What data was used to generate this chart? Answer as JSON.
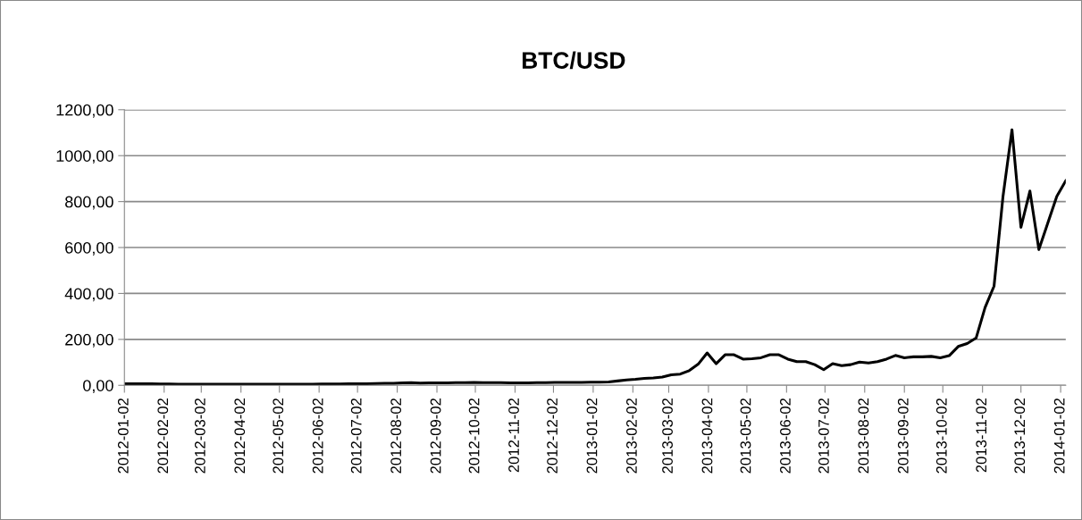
{
  "chart_data": {
    "type": "line",
    "title": "BTC/USD",
    "x": [
      "2012-01-02",
      "2012-01-09",
      "2012-01-16",
      "2012-01-23",
      "2012-01-30",
      "2012-02-06",
      "2012-02-13",
      "2012-02-20",
      "2012-02-27",
      "2012-03-05",
      "2012-03-12",
      "2012-03-19",
      "2012-03-26",
      "2012-04-02",
      "2012-04-09",
      "2012-04-16",
      "2012-04-23",
      "2012-04-30",
      "2012-05-07",
      "2012-05-14",
      "2012-05-21",
      "2012-05-28",
      "2012-06-04",
      "2012-06-11",
      "2012-06-18",
      "2012-06-25",
      "2012-07-02",
      "2012-07-09",
      "2012-07-16",
      "2012-07-23",
      "2012-07-30",
      "2012-08-06",
      "2012-08-13",
      "2012-08-20",
      "2012-08-27",
      "2012-09-03",
      "2012-09-10",
      "2012-09-17",
      "2012-09-24",
      "2012-10-01",
      "2012-10-08",
      "2012-10-15",
      "2012-10-22",
      "2012-10-29",
      "2012-11-05",
      "2012-11-12",
      "2012-11-19",
      "2012-11-26",
      "2012-12-03",
      "2012-12-10",
      "2012-12-17",
      "2012-12-24",
      "2012-12-31",
      "2013-01-07",
      "2013-01-14",
      "2013-01-21",
      "2013-01-28",
      "2013-02-04",
      "2013-02-11",
      "2013-02-18",
      "2013-02-25",
      "2013-03-04",
      "2013-03-11",
      "2013-03-18",
      "2013-03-25",
      "2013-04-01",
      "2013-04-08",
      "2013-04-15",
      "2013-04-22",
      "2013-04-29",
      "2013-05-06",
      "2013-05-13",
      "2013-05-20",
      "2013-05-27",
      "2013-06-03",
      "2013-06-10",
      "2013-06-17",
      "2013-06-24",
      "2013-07-01",
      "2013-07-08",
      "2013-07-15",
      "2013-07-22",
      "2013-07-29",
      "2013-08-05",
      "2013-08-12",
      "2013-08-19",
      "2013-08-26",
      "2013-09-02",
      "2013-09-09",
      "2013-09-16",
      "2013-09-23",
      "2013-09-30",
      "2013-10-07",
      "2013-10-14",
      "2013-10-21",
      "2013-10-28",
      "2013-11-04",
      "2013-11-11",
      "2013-11-18",
      "2013-11-25",
      "2013-12-02",
      "2013-12-09",
      "2013-12-16",
      "2013-12-23",
      "2013-12-30",
      "2014-01-06"
    ],
    "series": [
      {
        "color": "#000000",
        "values": [
          7,
          7,
          7,
          6.5,
          6,
          6,
          5,
          4.5,
          5,
          5,
          5,
          5,
          4.8,
          5,
          5,
          5,
          5,
          5,
          5,
          5,
          5,
          5,
          5.5,
          5.5,
          6,
          6.5,
          6.5,
          7,
          7.5,
          8.5,
          9,
          11,
          11.5,
          10,
          10.5,
          10.5,
          11,
          12,
          12,
          12.5,
          12,
          12,
          11.5,
          10.5,
          10.5,
          11,
          11.5,
          12,
          12.5,
          13,
          13,
          13,
          13.5,
          14,
          15,
          19,
          23,
          26,
          30,
          32,
          36,
          46,
          49,
          64,
          92,
          141,
          94,
          133,
          133,
          114,
          116,
          120,
          133,
          133,
          114,
          103,
          103,
          90,
          68,
          94,
          86,
          90,
          101,
          97,
          103,
          114,
          130,
          120,
          124,
          124,
          126,
          120,
          129,
          169,
          182,
          206,
          339,
          432,
          823,
          1113,
          688,
          846,
          591,
          707,
          823,
          891
        ]
      }
    ],
    "xlim": [
      "2012-01-02",
      "2014-01-06"
    ],
    "xticks": [
      "2012-01-02",
      "2012-02-02",
      "2012-03-02",
      "2012-04-02",
      "2012-05-02",
      "2012-06-02",
      "2012-07-02",
      "2012-08-02",
      "2012-09-02",
      "2012-10-02",
      "2012-11-02",
      "2012-12-02",
      "2013-01-02",
      "2013-02-02",
      "2013-03-02",
      "2013-04-02",
      "2013-05-02",
      "2013-06-02",
      "2013-07-02",
      "2013-08-02",
      "2013-09-02",
      "2013-10-02",
      "2013-11-02",
      "2013-12-02",
      "2014-01-02"
    ],
    "ylim": [
      0,
      1200
    ],
    "yticks": [
      {
        "value": 0,
        "label": "0,00"
      },
      {
        "value": 200,
        "label": "200,00"
      },
      {
        "value": 400,
        "label": "400,00"
      },
      {
        "value": 600,
        "label": "600,00"
      },
      {
        "value": 800,
        "label": "800,00"
      },
      {
        "value": 1000,
        "label": "1000,00"
      },
      {
        "value": 1200,
        "label": "1200,00"
      }
    ],
    "grid": "y",
    "legend": false,
    "marker": "none",
    "line_style": "solid"
  }
}
